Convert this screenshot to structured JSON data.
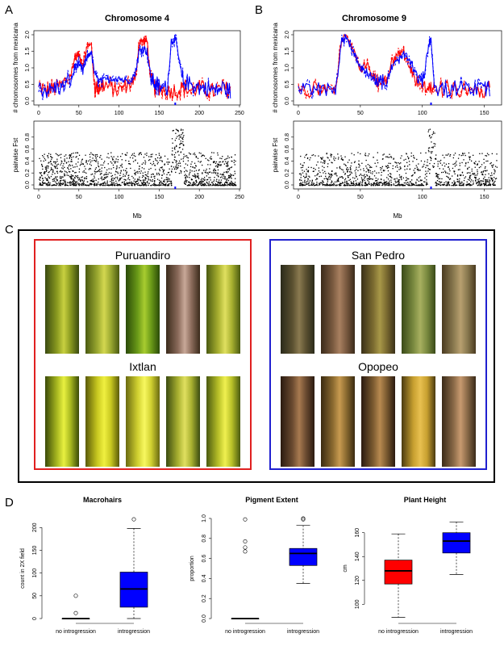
{
  "panels": {
    "a": "A",
    "b": "B",
    "c": "C",
    "d": "D"
  },
  "section_a": {
    "title": "Chromosome 4",
    "top_ylabel": "# chromosomes from mexicana",
    "bottom_ylabel": "pairwise Fst",
    "xlabel": "Mb"
  },
  "section_b": {
    "title": "Chromosome 9",
    "top_ylabel": "# chromosomes from mexicana",
    "bottom_ylabel": "pairwise Fst",
    "xlabel": "Mb"
  },
  "section_c": {
    "groups": [
      {
        "name": "Puruandiro",
        "color": "#e02020"
      },
      {
        "name": "Ixtlan",
        "color": "#e02020"
      },
      {
        "name": "San Pedro",
        "color": "#2020d0"
      },
      {
        "name": "Opopeo",
        "color": "#2020d0"
      }
    ]
  },
  "colors": {
    "red": "#ff0000",
    "blue": "#0000ff",
    "red_box": "#e02020",
    "blue_box": "#2020d0"
  },
  "chart_data": [
    {
      "type": "line",
      "title": "Chromosome 4",
      "ylabel": "# chromosomes from mexicana",
      "xlim": [
        0,
        245
      ],
      "ylim": [
        0,
        2
      ],
      "xticks": [
        0,
        50,
        100,
        150,
        200,
        250
      ],
      "yticks": [
        "0.0",
        "0.5",
        "1.0",
        "1.5",
        "2.0"
      ],
      "marker_x": 170,
      "series": [
        {
          "color": "red",
          "x": [
            0,
            10,
            20,
            30,
            40,
            45,
            50,
            55,
            60,
            65,
            70,
            75,
            80,
            90,
            100,
            110,
            120,
            125,
            130,
            135,
            140,
            145,
            150,
            160,
            170,
            180,
            190,
            200,
            210,
            220,
            230,
            240
          ],
          "values": [
            0.3,
            0.2,
            0.3,
            0.4,
            0.8,
            1.3,
            1.4,
            1.1,
            1.6,
            1.8,
            0.3,
            0.3,
            0.4,
            0.3,
            0.2,
            0.4,
            0.5,
            1.8,
            1.8,
            1.8,
            0.5,
            0.3,
            0.3,
            0.2,
            0.2,
            0.3,
            0.2,
            0.3,
            0.2,
            0.2,
            0.3,
            0.2
          ]
        },
        {
          "color": "blue",
          "x": [
            0,
            10,
            20,
            30,
            40,
            45,
            50,
            55,
            60,
            65,
            70,
            75,
            80,
            90,
            100,
            110,
            120,
            125,
            130,
            135,
            140,
            145,
            150,
            160,
            165,
            170,
            175,
            180,
            190,
            200,
            210,
            220,
            230,
            240
          ],
          "values": [
            0.3,
            0.2,
            0.3,
            0.3,
            0.6,
            1.0,
            1.1,
            0.9,
            1.3,
            1.5,
            0.8,
            0.6,
            0.6,
            0.7,
            0.7,
            0.6,
            0.8,
            1.5,
            1.6,
            1.5,
            0.6,
            0.4,
            0.3,
            0.3,
            1.8,
            1.9,
            1.2,
            0.5,
            0.4,
            0.3,
            0.3,
            0.2,
            0.3,
            0.2
          ]
        }
      ]
    },
    {
      "type": "scatter",
      "ylabel": "pairwise Fst",
      "xlabel": "Mb",
      "xlim": [
        0,
        245
      ],
      "ylim": [
        0,
        1
      ],
      "xticks": [
        0,
        50,
        100,
        150,
        200,
        250
      ],
      "yticks": [
        "0.0",
        "0.2",
        "0.4",
        "0.6",
        "0.8"
      ],
      "marker_x": 170,
      "peak_x": [
        165,
        180
      ],
      "point_count": 1500
    },
    {
      "type": "line",
      "title": "Chromosome 9",
      "ylabel": "# chromosomes from mexicana",
      "xlim": [
        0,
        160
      ],
      "ylim": [
        0,
        2
      ],
      "xticks": [
        0,
        50,
        100,
        150
      ],
      "yticks": [
        "0.0",
        "0.5",
        "1.0",
        "1.5",
        "2.0"
      ],
      "marker_x": 107,
      "series": [
        {
          "color": "red",
          "x": [
            0,
            10,
            20,
            30,
            35,
            40,
            45,
            50,
            55,
            60,
            65,
            70,
            75,
            80,
            85,
            90,
            95,
            100,
            105,
            110,
            120,
            130,
            140,
            150,
            155
          ],
          "values": [
            0.3,
            0.2,
            0.3,
            0.3,
            1.9,
            1.9,
            1.5,
            1.0,
            1.1,
            0.8,
            0.5,
            0.5,
            1.2,
            1.4,
            1.5,
            1.0,
            0.6,
            0.3,
            0.3,
            0.2,
            0.3,
            0.2,
            0.3,
            0.2,
            0.3
          ]
        },
        {
          "color": "blue",
          "x": [
            0,
            10,
            20,
            30,
            35,
            40,
            45,
            50,
            55,
            60,
            65,
            70,
            75,
            80,
            85,
            90,
            95,
            100,
            105,
            107,
            110,
            120,
            130,
            140,
            150,
            155
          ],
          "values": [
            0.2,
            0.3,
            0.2,
            0.3,
            1.8,
            1.9,
            1.4,
            1.0,
            0.9,
            0.7,
            0.5,
            0.4,
            1.0,
            1.2,
            1.4,
            1.2,
            0.8,
            0.4,
            1.7,
            1.9,
            0.3,
            0.2,
            0.3,
            0.2,
            0.3,
            0.2
          ]
        }
      ]
    },
    {
      "type": "scatter",
      "ylabel": "pairwise Fst",
      "xlabel": "Mb",
      "xlim": [
        0,
        160
      ],
      "ylim": [
        0,
        1
      ],
      "xticks": [
        0,
        50,
        100,
        150
      ],
      "yticks": [
        "0.0",
        "0.2",
        "0.4",
        "0.6",
        "0.8"
      ],
      "marker_x": 107,
      "peak_x": [
        104,
        110
      ],
      "point_count": 1200
    },
    {
      "type": "box",
      "title": "Macrohairs",
      "ylabel": "count in 2X field",
      "categories": [
        "no introgression",
        "introgression"
      ],
      "ylim": [
        0,
        220
      ],
      "yticks": [
        "0",
        "50",
        "100",
        "150",
        "200"
      ],
      "boxes": [
        {
          "color": "red",
          "min": 0,
          "q1": 0,
          "median": 0,
          "q3": 0,
          "max": 0,
          "outliers": [
            12,
            50
          ]
        },
        {
          "color": "blue",
          "min": 0,
          "q1": 25,
          "median": 65,
          "q3": 102,
          "max": 198,
          "outliers": [
            218
          ]
        }
      ]
    },
    {
      "type": "box",
      "title": "Pigment Extent",
      "ylabel": "proportion",
      "categories": [
        "no introgression",
        "introgression"
      ],
      "ylim": [
        0,
        1
      ],
      "yticks": [
        "0.0",
        "0.2",
        "0.4",
        "0.6",
        "0.8",
        "1.0"
      ],
      "boxes": [
        {
          "color": "red",
          "min": 0,
          "q1": 0,
          "median": 0,
          "q3": 0,
          "max": 0,
          "outliers": [
            0.67,
            0.71,
            0.77,
            0.99
          ]
        },
        {
          "color": "blue",
          "min": 0.35,
          "q1": 0.53,
          "median": 0.65,
          "q3": 0.7,
          "max": 0.93,
          "outliers": [
            0.99,
            1.0
          ]
        }
      ]
    },
    {
      "type": "box",
      "title": "Plant Height",
      "ylabel": "cm",
      "categories": [
        "no introgression",
        "introgression"
      ],
      "ylim": [
        88,
        172
      ],
      "yticks": [
        "100",
        "120",
        "140",
        "160"
      ],
      "boxes": [
        {
          "color": "red",
          "min": 89,
          "q1": 117,
          "median": 128,
          "q3": 137,
          "max": 159,
          "outliers": []
        },
        {
          "color": "blue",
          "min": 125,
          "q1": 143,
          "median": 153,
          "q3": 160,
          "max": 169,
          "outliers": []
        }
      ]
    }
  ]
}
